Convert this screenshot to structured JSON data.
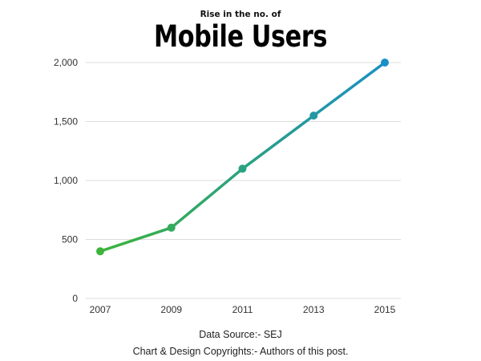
{
  "chart_data": {
    "type": "line",
    "subtitle": "Rise in the no. of",
    "title": "Mobile Users",
    "xlabel": "",
    "ylabel": "",
    "categories": [
      "2007",
      "2009",
      "2011",
      "2013",
      "2015"
    ],
    "series": [
      {
        "values": [
          400,
          600,
          1100,
          1550,
          2000
        ]
      }
    ],
    "ylim": [
      0,
      2000
    ],
    "yticks": [
      "0",
      "500",
      "1,000",
      "1,500",
      "2,000"
    ],
    "ytick_values": [
      0,
      500,
      1000,
      1500,
      2000
    ],
    "grid": "horizontal",
    "legend": "none",
    "colors": {
      "line_start": "#3cb43a",
      "line_end": "#1a8fc6",
      "grid": "#dcdcdc"
    }
  },
  "footer": {
    "source": "Data Source:- SEJ",
    "copyright": "Chart & Design Copyrights:- Authors of this post."
  }
}
